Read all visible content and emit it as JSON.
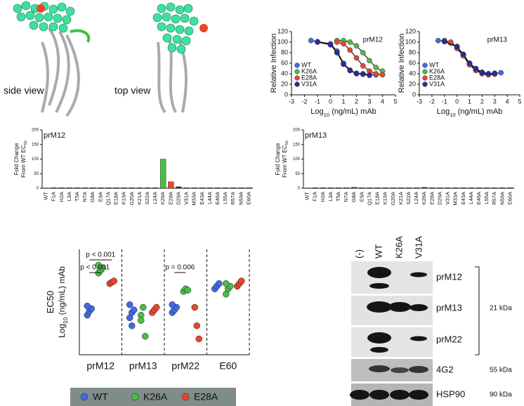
{
  "structure": {
    "labels": [
      "side view",
      "top view"
    ]
  },
  "chart_data": [
    {
      "type": "line",
      "title": "prM12",
      "y_label": "Relative Infection",
      "x_label": {
        "main": "Log",
        "sub": "10",
        "rest": " (ng/mL) mAb"
      },
      "xlim": [
        -3,
        5
      ],
      "xticks": [
        -3,
        -2,
        -1,
        0,
        1,
        2,
        3,
        4,
        5
      ],
      "ylim": [
        0,
        120
      ],
      "yticks": [
        0,
        20,
        40,
        60,
        80,
        100,
        120
      ],
      "series": [
        {
          "name": "WT",
          "color": "#4169e1",
          "x": [
            -1.5,
            -1,
            0,
            0.5,
            1,
            1.5,
            2,
            2.5,
            3,
            3.5
          ],
          "values": [
            103,
            101,
            97,
            83,
            60,
            47,
            41,
            40,
            38,
            38
          ]
        },
        {
          "name": "K26A",
          "color": "#4cbb47",
          "x": [
            0.5,
            1,
            1.5,
            2,
            2.5,
            3,
            3.5,
            4
          ],
          "values": [
            103,
            103,
            100,
            93,
            80,
            65,
            52,
            45
          ]
        },
        {
          "name": "E28A",
          "color": "#e8452c",
          "x": [
            0.5,
            1,
            1.5,
            2,
            2.5,
            3,
            3.5,
            4
          ],
          "values": [
            100,
            97,
            85,
            70,
            55,
            45,
            40,
            38
          ]
        },
        {
          "name": "V31A",
          "color": "#2a2a9c",
          "x": [
            -1,
            0,
            0.5,
            1,
            1.5,
            2,
            2.5,
            3
          ],
          "values": [
            100,
            95,
            80,
            58,
            46,
            40,
            39,
            37
          ]
        }
      ]
    },
    {
      "type": "line",
      "title": "prM13",
      "y_label": "Relative Infection",
      "x_label": {
        "main": "Log",
        "sub": "10",
        "rest": " (ng/mL) mAb"
      },
      "xlim": [
        -3,
        5
      ],
      "xticks": [
        -3,
        -2,
        -1,
        0,
        1,
        2,
        3,
        4,
        5
      ],
      "ylim": [
        0,
        120
      ],
      "yticks": [
        0,
        20,
        40,
        60,
        80,
        100,
        120
      ],
      "series": [
        {
          "name": "WT",
          "color": "#4169e1",
          "x": [
            -1.5,
            -1,
            -0.5,
            0,
            0.5,
            1,
            1.5,
            2,
            2.5,
            3,
            3.5
          ],
          "values": [
            103,
            102,
            100,
            90,
            75,
            60,
            50,
            43,
            40,
            40,
            42
          ]
        },
        {
          "name": "K26A",
          "color": "#4cbb47",
          "x": [
            -1,
            -0.5,
            0,
            0.5,
            1,
            1.5,
            2,
            2.5,
            3
          ],
          "values": [
            103,
            98,
            92,
            76,
            58,
            47,
            41,
            39,
            40
          ]
        },
        {
          "name": "E28A",
          "color": "#e8452c",
          "x": [
            -1,
            -0.5,
            0,
            0.5,
            1,
            1.5,
            2,
            2.5,
            3
          ],
          "values": [
            102,
            100,
            88,
            74,
            57,
            46,
            40,
            38,
            39
          ]
        },
        {
          "name": "V31A",
          "color": "#2a2a9c",
          "x": [
            -1,
            0,
            0.5,
            1,
            1.5,
            2,
            2.5,
            3
          ],
          "values": [
            101,
            91,
            77,
            60,
            49,
            42,
            40,
            41
          ]
        }
      ]
    },
    {
      "type": "bar",
      "title": "prM12",
      "y_label": {
        "line1": "Fold Change",
        "line2": "From WT EC",
        "sub": "50"
      },
      "categories": [
        "WT",
        "F1A",
        "H2A",
        "L3A",
        "T5A",
        "N7A",
        "G8A",
        "E9A",
        "Q17A",
        "E18A",
        "K19A",
        "G20A",
        "K21A",
        "S22A",
        "L24A",
        "K26A",
        "E28A",
        "D29A",
        "V31A",
        "M33A",
        "E43A",
        "L44A",
        "E46A",
        "L55A",
        "R57A",
        "N59A",
        "E60A"
      ],
      "values": [
        1,
        2,
        2,
        2,
        2,
        2,
        2,
        2,
        2,
        2,
        2,
        2,
        2,
        2,
        2,
        100,
        22,
        5,
        2,
        2,
        2,
        2,
        2,
        2,
        2,
        2,
        2
      ],
      "colors": [
        "#333",
        "#333",
        "#333",
        "#333",
        "#333",
        "#333",
        "#333",
        "#333",
        "#333",
        "#333",
        "#333",
        "#333",
        "#333",
        "#333",
        "#333",
        "#4cbb47",
        "#e8452c",
        "#333",
        "#333",
        "#333",
        "#333",
        "#333",
        "#333",
        "#333",
        "#333",
        "#333",
        "#333"
      ],
      "ylim": [
        0,
        200
      ],
      "yticks": [
        0,
        50,
        100,
        150,
        200
      ]
    },
    {
      "type": "bar",
      "title": "prM13",
      "y_label": {
        "line1": "Fold Change",
        "line2": "From WT EC",
        "sub": "50"
      },
      "categories": [
        "WT",
        "F1A",
        "H2A",
        "L3A",
        "T5A",
        "N7A",
        "G8A",
        "E9A",
        "Q17A",
        "E18A",
        "K19A",
        "G20A",
        "K21A",
        "S22A",
        "L24A",
        "K26A",
        "E28A",
        "D29A",
        "V31A",
        "M33A",
        "E43A",
        "L44A",
        "E46A",
        "L55A",
        "R57A",
        "N59A",
        "E60A"
      ],
      "values": [
        1,
        2,
        2,
        2,
        2,
        2,
        3,
        2,
        2,
        2,
        2,
        2,
        2,
        2,
        2,
        3,
        2,
        2,
        2,
        2,
        2,
        2,
        2,
        2,
        2,
        2,
        2
      ],
      "colors": [
        "#333",
        "#333",
        "#333",
        "#333",
        "#333",
        "#333",
        "#333",
        "#333",
        "#333",
        "#333",
        "#333",
        "#333",
        "#333",
        "#333",
        "#333",
        "#333",
        "#333",
        "#333",
        "#333",
        "#333",
        "#333",
        "#333",
        "#333",
        "#333",
        "#333",
        "#333",
        "#333"
      ],
      "ylim": [
        0,
        200
      ],
      "yticks": [
        0,
        50,
        100,
        150,
        200
      ]
    },
    {
      "type": "dot",
      "y_label": {
        "line1": "EC50",
        "line2": "Log",
        "sub": "10",
        "rest": " (ng/mL) mAb"
      },
      "categories": [
        "prM12",
        "prM13",
        "prM22",
        "E60"
      ],
      "ylim": [
        -1,
        3
      ],
      "annotations": [
        "p < 0.001",
        "p < 0.001",
        "p = 0.006"
      ],
      "series": [
        {
          "name": "WT",
          "color": "#4169e1",
          "values": [
            [
              0.5,
              0.65,
              0.75,
              0.85
            ],
            [
              0.4,
              0.6,
              0.7,
              0.9,
              0.1
            ],
            [
              0.6,
              0.7,
              0.8,
              0.9
            ],
            [
              1.5,
              1.6,
              1.7
            ]
          ]
        },
        {
          "name": "K26A",
          "color": "#4cbb47",
          "values": [
            [
              2.1,
              2.2,
              2.3,
              2.4
            ],
            [
              0.5,
              0.8,
              -0.3,
              0.3
            ],
            [
              1.4,
              1.5,
              1.45
            ],
            [
              1.3,
              1.5,
              1.6,
              1.7
            ]
          ]
        },
        {
          "name": "E28A",
          "color": "#e8452c",
          "values": [
            [
              1.7,
              1.75,
              1.8
            ],
            [
              0.6,
              0.7,
              0.8
            ],
            [
              0.8,
              0.1,
              -0.4
            ],
            [
              1.6,
              1.7,
              1.8
            ]
          ]
        }
      ]
    }
  ],
  "blot": {
    "lanes": [
      "(-)",
      "WT",
      "K26A",
      "V31A"
    ],
    "rows": [
      "prM12",
      "prM13",
      "prM22",
      "4G2",
      "HSP90"
    ],
    "sizes": [
      "21 kDa",
      "55 kDa",
      "90 kDa"
    ]
  }
}
